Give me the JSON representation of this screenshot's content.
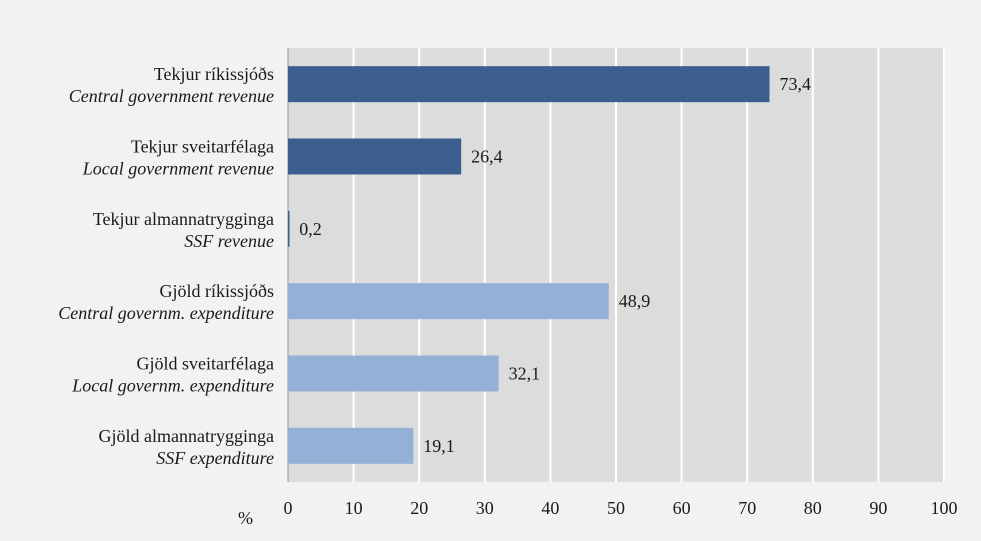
{
  "chart_data": {
    "type": "bar",
    "orientation": "horizontal",
    "categories": [
      {
        "primary": "Tekjur ríkissjóðs",
        "secondary": "Central government revenue"
      },
      {
        "primary": "Tekjur sveitarfélaga",
        "secondary": "Local government revenue"
      },
      {
        "primary": "Tekjur almannatrygginga",
        "secondary": "SSF revenue"
      },
      {
        "primary": "Gjöld ríkissjóðs",
        "secondary": "Central governm. expenditure"
      },
      {
        "primary": "Gjöld sveitarfélaga",
        "secondary": "Local governm. expenditure"
      },
      {
        "primary": "Gjöld almannatrygginga",
        "secondary": "SSF expenditure"
      }
    ],
    "values": [
      73.4,
      26.4,
      0.2,
      48.9,
      32.1,
      19.1
    ],
    "value_labels": [
      "73,4",
      "26,4",
      "0,2",
      "48,9",
      "32,1",
      "19,1"
    ],
    "bar_colors": [
      "#3b5e8f",
      "#3b5e8f",
      "#3b5e8f",
      "#94b0d6",
      "#94b0d6",
      "#94b0d6"
    ],
    "xlim": [
      0,
      100
    ],
    "xticks": [
      0,
      10,
      20,
      30,
      40,
      50,
      60,
      70,
      80,
      90,
      100
    ],
    "xlabel": "%",
    "grid": "vertical",
    "plot_background": "#dcdcdc",
    "page_background": "#f2f2f2"
  }
}
